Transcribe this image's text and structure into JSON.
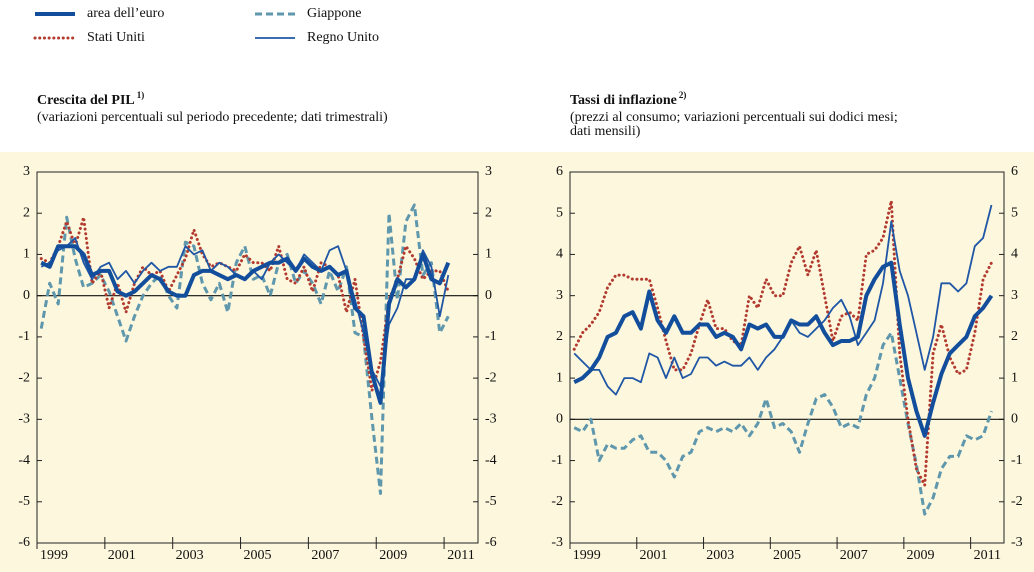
{
  "chart_data": [
    {
      "type": "line",
      "title": "Crescita del PIL",
      "title_note": "1)",
      "subtitle_lines": [
        "(variazioni percentuali sul periodo precedente; dati trimestrali)"
      ],
      "x": [
        1999.125,
        1999.375,
        1999.625,
        1999.875,
        2000.125,
        2000.375,
        2000.625,
        2000.875,
        2001.125,
        2001.375,
        2001.625,
        2001.875,
        2002.125,
        2002.375,
        2002.625,
        2002.875,
        2003.125,
        2003.375,
        2003.625,
        2003.875,
        2004.125,
        2004.375,
        2004.625,
        2004.875,
        2005.125,
        2005.375,
        2005.625,
        2005.875,
        2006.125,
        2006.375,
        2006.625,
        2006.875,
        2007.125,
        2007.375,
        2007.625,
        2007.875,
        2008.125,
        2008.375,
        2008.625,
        2008.875,
        2009.125,
        2009.375,
        2009.625,
        2009.875,
        2010.125,
        2010.375,
        2010.625,
        2010.875,
        2011.125
      ],
      "xlim": [
        1999,
        2012
      ],
      "xticks": [
        1999,
        2001,
        2003,
        2005,
        2007,
        2009,
        2011
      ],
      "ylim": [
        -6,
        3
      ],
      "yticks": [
        -6,
        -5,
        -4,
        -3,
        -2,
        -1,
        0,
        1,
        2,
        3
      ],
      "series": [
        {
          "name": "Giappone",
          "color": "#5f97ad",
          "style": "dashed",
          "values": [
            -0.8,
            0.3,
            -0.2,
            1.9,
            0.9,
            0.2,
            0.3,
            0.5,
            0.1,
            -0.5,
            -1.1,
            -0.5,
            0.0,
            0.3,
            0.5,
            0.0,
            -0.3,
            1.3,
            1.2,
            0.3,
            -0.1,
            0.3,
            -0.4,
            0.8,
            1.2,
            0.4,
            0.5,
            0.0,
            0.8,
            1.0,
            0.3,
            0.6,
            0.3,
            -0.2,
            0.6,
            0.1,
            0.7,
            -0.9,
            -1.0,
            -3.0,
            -4.8,
            2.0,
            -0.1,
            1.8,
            2.2,
            0.5,
            0.8,
            -0.9,
            -0.5
          ]
        },
        {
          "name": "Stati Uniti",
          "color": "#b33a2e",
          "style": "dotted",
          "values": [
            0.9,
            0.8,
            1.2,
            1.8,
            1.2,
            1.9,
            0.3,
            0.6,
            -0.3,
            0.3,
            -0.4,
            0.3,
            0.7,
            0.5,
            0.6,
            0.1,
            0.5,
            0.9,
            1.6,
            1.0,
            0.7,
            0.8,
            0.7,
            0.6,
            1.0,
            0.8,
            0.8,
            0.6,
            1.2,
            0.4,
            0.3,
            0.7,
            0.1,
            0.8,
            0.7,
            0.5,
            -0.4,
            0.4,
            -1.0,
            -2.3,
            -1.6,
            -0.1,
            0.4,
            1.2,
            0.9,
            0.4,
            0.6,
            0.6,
            0.1
          ]
        },
        {
          "name": "Regno Unito",
          "color": "#1f56a5",
          "style": "thin",
          "values": [
            0.7,
            0.8,
            1.1,
            1.2,
            1.4,
            0.8,
            0.4,
            0.7,
            0.8,
            0.4,
            0.6,
            0.3,
            0.6,
            0.8,
            0.6,
            0.7,
            0.7,
            1.2,
            1.0,
            1.1,
            0.6,
            0.8,
            0.7,
            0.5,
            0.4,
            0.6,
            0.4,
            0.8,
            1.0,
            0.8,
            0.6,
            1.0,
            0.8,
            0.6,
            1.1,
            1.2,
            0.6,
            -0.1,
            -0.9,
            -1.8,
            -2.2,
            -0.7,
            -0.3,
            0.4,
            0.4,
            1.1,
            0.7,
            -0.5,
            0.5
          ]
        },
        {
          "name": "area dell’euro",
          "color": "#134e9c",
          "style": "thick",
          "values": [
            0.8,
            0.7,
            1.2,
            1.2,
            1.2,
            1.0,
            0.5,
            0.6,
            0.6,
            0.1,
            0.0,
            0.1,
            0.3,
            0.5,
            0.4,
            0.1,
            0.0,
            0.0,
            0.5,
            0.6,
            0.6,
            0.5,
            0.4,
            0.5,
            0.4,
            0.6,
            0.7,
            0.8,
            0.8,
            0.9,
            0.6,
            0.9,
            0.7,
            0.6,
            0.7,
            0.5,
            0.6,
            -0.3,
            -0.5,
            -1.9,
            -2.6,
            -0.2,
            0.4,
            0.2,
            0.4,
            1.0,
            0.4,
            0.3,
            0.8
          ]
        }
      ]
    },
    {
      "type": "line",
      "title": "Tassi di inflazione",
      "title_note": "2)",
      "subtitle_lines": [
        "(prezzi al consumo; variazioni percentuali sui dodici mesi;",
        "dati mensili)"
      ],
      "x": [
        1999.125,
        1999.375,
        1999.625,
        1999.875,
        2000.125,
        2000.375,
        2000.625,
        2000.875,
        2001.125,
        2001.375,
        2001.625,
        2001.875,
        2002.125,
        2002.375,
        2002.625,
        2002.875,
        2003.125,
        2003.375,
        2003.625,
        2003.875,
        2004.125,
        2004.375,
        2004.625,
        2004.875,
        2005.125,
        2005.375,
        2005.625,
        2005.875,
        2006.125,
        2006.375,
        2006.625,
        2006.875,
        2007.125,
        2007.375,
        2007.625,
        2007.875,
        2008.125,
        2008.375,
        2008.625,
        2008.875,
        2009.125,
        2009.375,
        2009.625,
        2009.875,
        2010.125,
        2010.375,
        2010.625,
        2010.875,
        2011.125,
        2011.375,
        2011.625
      ],
      "xlim": [
        1999,
        2012
      ],
      "xticks": [
        1999,
        2001,
        2003,
        2005,
        2007,
        2009,
        2011
      ],
      "ylim": [
        -3,
        6
      ],
      "yticks": [
        -3,
        -2,
        -1,
        0,
        1,
        2,
        3,
        4,
        5,
        6
      ],
      "series": [
        {
          "name": "Giappone",
          "color": "#5f97ad",
          "style": "dashed",
          "values": [
            -0.2,
            -0.3,
            0.0,
            -1.0,
            -0.6,
            -0.7,
            -0.7,
            -0.5,
            -0.4,
            -0.8,
            -0.8,
            -1.0,
            -1.4,
            -0.9,
            -0.8,
            -0.3,
            -0.2,
            -0.3,
            -0.2,
            -0.3,
            -0.1,
            -0.4,
            -0.1,
            0.5,
            -0.2,
            -0.1,
            -0.3,
            -0.8,
            -0.1,
            0.5,
            0.6,
            0.3,
            -0.2,
            -0.1,
            -0.2,
            0.6,
            1.0,
            1.8,
            2.1,
            1.0,
            -0.1,
            -1.1,
            -2.3,
            -1.9,
            -1.2,
            -0.9,
            -0.9,
            -0.4,
            -0.5,
            -0.4,
            0.2
          ]
        },
        {
          "name": "Stati Uniti",
          "color": "#b33a2e",
          "style": "dotted",
          "values": [
            1.7,
            2.1,
            2.3,
            2.6,
            3.2,
            3.5,
            3.5,
            3.4,
            3.4,
            3.4,
            2.7,
            1.9,
            1.2,
            1.2,
            1.6,
            2.3,
            2.9,
            2.2,
            2.2,
            1.9,
            1.8,
            3.0,
            2.7,
            3.4,
            3.0,
            3.0,
            3.8,
            4.2,
            3.5,
            4.1,
            3.0,
            1.9,
            2.5,
            2.6,
            2.4,
            4.0,
            4.1,
            4.4,
            5.3,
            1.6,
            0.0,
            -1.2,
            -1.6,
            1.6,
            2.3,
            1.5,
            1.1,
            1.2,
            2.1,
            3.4,
            3.8
          ]
        },
        {
          "name": "Regno Unito",
          "color": "#1f56a5",
          "style": "thin",
          "values": [
            1.6,
            1.4,
            1.2,
            1.2,
            0.8,
            0.6,
            1.0,
            1.0,
            0.9,
            1.6,
            1.5,
            1.0,
            1.5,
            1.0,
            1.1,
            1.5,
            1.5,
            1.3,
            1.4,
            1.3,
            1.3,
            1.5,
            1.2,
            1.5,
            1.7,
            2.0,
            2.4,
            2.1,
            2.0,
            2.2,
            2.4,
            2.7,
            2.9,
            2.5,
            1.8,
            2.1,
            2.4,
            3.3,
            4.8,
            3.6,
            3.0,
            2.1,
            1.2,
            2.0,
            3.3,
            3.3,
            3.1,
            3.3,
            4.2,
            4.4,
            5.2
          ]
        },
        {
          "name": "area dell’euro",
          "color": "#134e9c",
          "style": "thick",
          "values": [
            0.9,
            1.0,
            1.2,
            1.5,
            2.0,
            2.1,
            2.5,
            2.6,
            2.2,
            3.1,
            2.4,
            2.1,
            2.5,
            2.1,
            2.1,
            2.3,
            2.3,
            2.0,
            2.1,
            2.0,
            1.7,
            2.3,
            2.2,
            2.3,
            2.0,
            2.0,
            2.4,
            2.3,
            2.3,
            2.5,
            2.1,
            1.8,
            1.9,
            1.9,
            2.0,
            3.0,
            3.4,
            3.7,
            3.8,
            2.3,
            1.0,
            0.2,
            -0.4,
            0.4,
            1.1,
            1.6,
            1.8,
            2.0,
            2.5,
            2.7,
            3.0
          ]
        }
      ]
    }
  ]
}
